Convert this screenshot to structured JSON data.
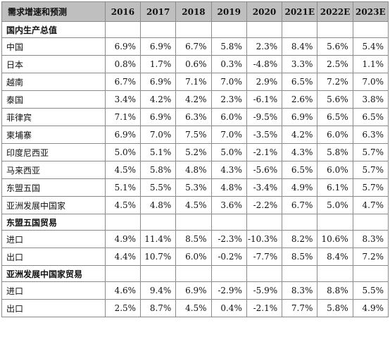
{
  "columns": [
    "需求增速和预测",
    "2016",
    "2017",
    "2018",
    "2019",
    "2020",
    "2021E",
    "2022E",
    "2023E"
  ],
  "sections": [
    {
      "title": "国内生产总值",
      "rows": [
        {
          "label": "中国",
          "values": [
            "6.9%",
            "6.9%",
            "6.7%",
            "5.8%",
            "2.3%",
            "8.4%",
            "5.6%",
            "5.4%"
          ]
        },
        {
          "label": "日本",
          "values": [
            "0.8%",
            "1.7%",
            "0.6%",
            "0.3%",
            "-4.8%",
            "3.3%",
            "2.5%",
            "1.1%"
          ]
        },
        {
          "label": "越南",
          "values": [
            "6.7%",
            "6.9%",
            "7.1%",
            "7.0%",
            "2.9%",
            "6.5%",
            "7.2%",
            "7.0%"
          ]
        },
        {
          "label": "泰国",
          "values": [
            "3.4%",
            "4.2%",
            "4.2%",
            "2.3%",
            "-6.1%",
            "2.6%",
            "5.6%",
            "3.8%"
          ]
        },
        {
          "label": "菲律宾",
          "values": [
            "7.1%",
            "6.9%",
            "6.3%",
            "6.0%",
            "-9.5%",
            "6.9%",
            "6.5%",
            "6.5%"
          ]
        },
        {
          "label": "柬埔寨",
          "values": [
            "6.9%",
            "7.0%",
            "7.5%",
            "7.0%",
            "-3.5%",
            "4.2%",
            "6.0%",
            "6.3%"
          ]
        },
        {
          "label": "印度尼西亚",
          "values": [
            "5.0%",
            "5.1%",
            "5.2%",
            "5.0%",
            "-2.1%",
            "4.3%",
            "5.8%",
            "5.7%"
          ]
        },
        {
          "label": "马来西亚",
          "values": [
            "4.5%",
            "5.8%",
            "4.8%",
            "4.3%",
            "-5.6%",
            "6.5%",
            "6.0%",
            "5.7%"
          ]
        },
        {
          "label": "东盟五国",
          "values": [
            "5.1%",
            "5.5%",
            "5.3%",
            "4.8%",
            "-3.4%",
            "4.9%",
            "6.1%",
            "5.7%"
          ]
        },
        {
          "label": "亚洲发展中国家",
          "values": [
            "4.5%",
            "4.8%",
            "4.5%",
            "3.6%",
            "-2.2%",
            "6.7%",
            "5.0%",
            "4.7%"
          ]
        }
      ]
    },
    {
      "title": "东盟五国贸易",
      "rows": [
        {
          "label": "进口",
          "values": [
            "4.9%",
            "11.4%",
            "8.5%",
            "-2.3%",
            "-10.3%",
            "8.2%",
            "10.6%",
            "8.3%"
          ]
        },
        {
          "label": "出口",
          "values": [
            "4.4%",
            "10.7%",
            "6.0%",
            "-0.2%",
            "-7.7%",
            "8.5%",
            "8.4%",
            "7.2%"
          ]
        }
      ]
    },
    {
      "title": "亚洲发展中国家贸易",
      "rows": [
        {
          "label": "进口",
          "values": [
            "4.6%",
            "9.4%",
            "6.9%",
            "-2.9%",
            "-5.9%",
            "8.3%",
            "8.8%",
            "5.5%"
          ]
        },
        {
          "label": "出口",
          "values": [
            "2.5%",
            "8.7%",
            "4.5%",
            "0.4%",
            "-2.1%",
            "7.7%",
            "5.8%",
            "4.9%"
          ]
        }
      ]
    }
  ]
}
